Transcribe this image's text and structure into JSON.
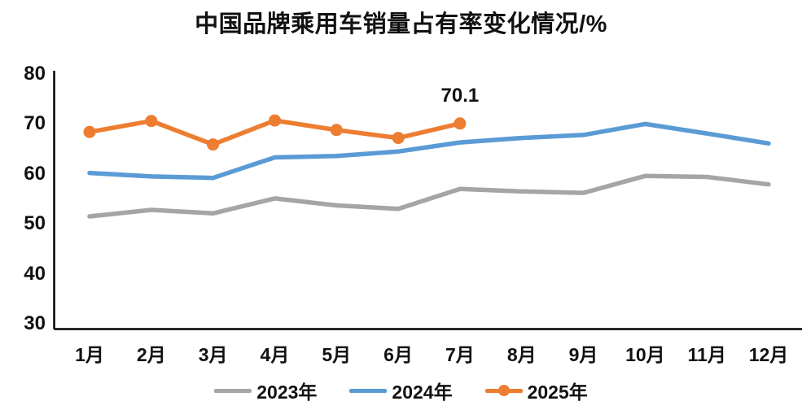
{
  "chart_data": {
    "type": "line",
    "title": "中国品牌乘用车销量占有率变化情况/%",
    "categories": [
      "1月",
      "2月",
      "3月",
      "4月",
      "5月",
      "6月",
      "7月",
      "8月",
      "9月",
      "10月",
      "11月",
      "12月"
    ],
    "series": [
      {
        "name": "2023年",
        "color": "#A5A5A5",
        "marker": false,
        "values": [
          51.5,
          52.8,
          52.1,
          55.1,
          53.7,
          53.0,
          57.0,
          56.5,
          56.2,
          59.6,
          59.4,
          57.9
        ]
      },
      {
        "name": "2024年",
        "color": "#5B9BD5",
        "marker": false,
        "values": [
          60.2,
          59.5,
          59.2,
          63.3,
          63.6,
          64.5,
          66.3,
          67.2,
          67.8,
          70.0,
          68.1,
          66.1
        ]
      },
      {
        "name": "2025年",
        "color": "#ED7D31",
        "marker": true,
        "values": [
          68.4,
          70.6,
          65.9,
          70.7,
          68.8,
          67.2,
          70.1
        ]
      }
    ],
    "ylim": [
      30,
      80
    ],
    "yticks": [
      80,
      70,
      60,
      50,
      40,
      30
    ],
    "grid": false,
    "legend_position": "bottom",
    "annotation": {
      "text": "70.1",
      "series": "2025年",
      "point_index": 6
    },
    "axis_color": "#000000",
    "text_color": "#111111"
  }
}
